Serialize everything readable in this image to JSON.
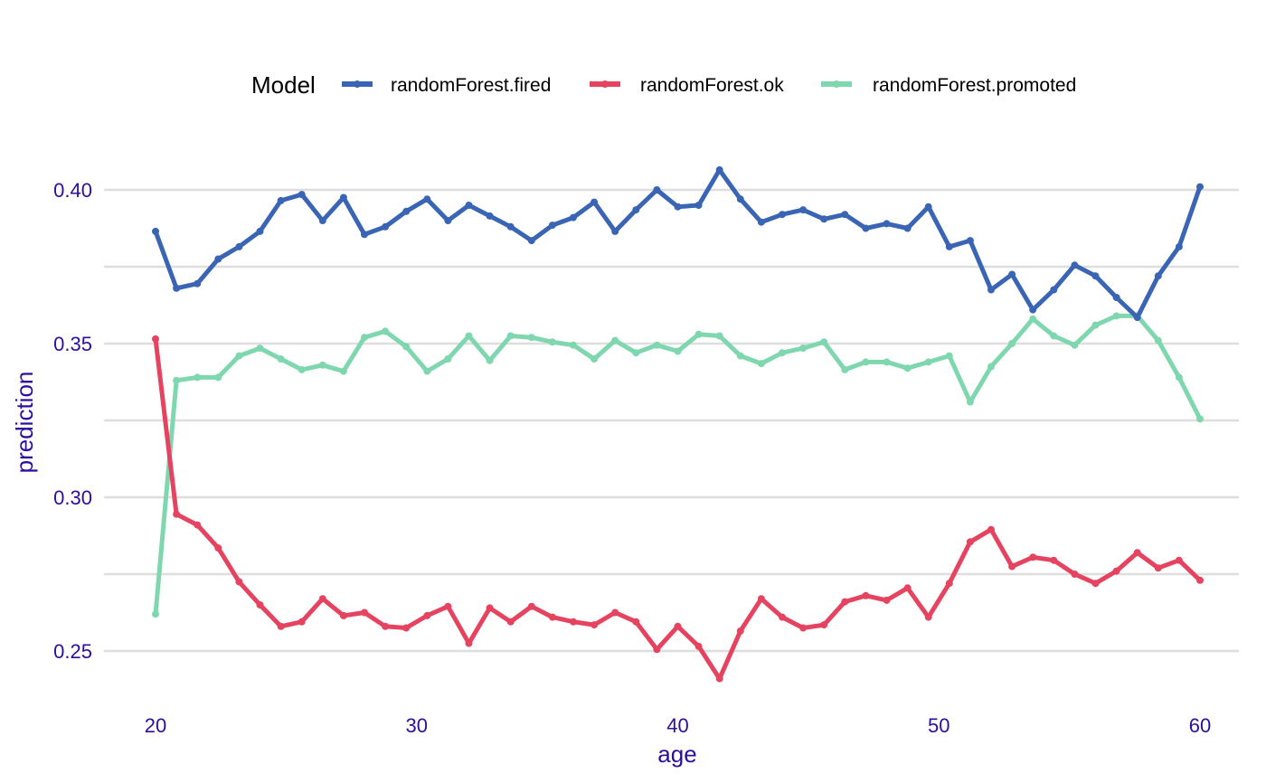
{
  "chart_data": {
    "type": "line",
    "title": "",
    "xlabel": "age",
    "ylabel": "prediction",
    "xlim": [
      20,
      60
    ],
    "ylim": [
      0.24,
      0.41
    ],
    "xticks": [
      "20",
      "30",
      "40",
      "50",
      "60"
    ],
    "yticks": [
      "0.25",
      "0.30",
      "0.35",
      "0.40"
    ],
    "grid": true,
    "legend": {
      "title": "Model",
      "position": "top"
    },
    "x": [
      20.0,
      20.8,
      21.6,
      22.4,
      23.2,
      24.0,
      24.8,
      25.6,
      26.4,
      27.2,
      28.0,
      28.8,
      29.6,
      30.4,
      31.2,
      32.0,
      32.8,
      33.6,
      34.4,
      35.2,
      36.0,
      36.8,
      37.6,
      38.4,
      39.2,
      40.0,
      40.8,
      41.6,
      42.4,
      43.2,
      44.0,
      44.8,
      45.6,
      46.4,
      47.2,
      48.0,
      48.8,
      49.6,
      50.4,
      51.2,
      52.0,
      52.8,
      53.6,
      54.4,
      55.2,
      56.0,
      56.8,
      57.6,
      58.4,
      59.2,
      60.0
    ],
    "series": [
      {
        "name": "randomForest.fired",
        "color": "#3a65b5",
        "values": [
          0.3865,
          0.368,
          0.3695,
          0.3775,
          0.3815,
          0.3865,
          0.3965,
          0.3985,
          0.39,
          0.3975,
          0.3855,
          0.388,
          0.393,
          0.397,
          0.39,
          0.395,
          0.3915,
          0.388,
          0.3835,
          0.3885,
          0.391,
          0.396,
          0.3865,
          0.3935,
          0.4,
          0.3945,
          0.395,
          0.4065,
          0.397,
          0.3895,
          0.392,
          0.3935,
          0.3905,
          0.392,
          0.3875,
          0.389,
          0.3875,
          0.3945,
          0.3815,
          0.3835,
          0.3675,
          0.3725,
          0.361,
          0.3675,
          0.3755,
          0.372,
          0.365,
          0.3585,
          0.372,
          0.3815,
          0.401
        ]
      },
      {
        "name": "randomForest.ok",
        "color": "#e5435f",
        "values": [
          0.3515,
          0.2945,
          0.291,
          0.2835,
          0.2725,
          0.265,
          0.258,
          0.2595,
          0.267,
          0.2615,
          0.2625,
          0.258,
          0.2575,
          0.2615,
          0.2645,
          0.2525,
          0.264,
          0.2595,
          0.2645,
          0.261,
          0.2595,
          0.2585,
          0.2625,
          0.2595,
          0.2505,
          0.258,
          0.2515,
          0.241,
          0.2565,
          0.267,
          0.261,
          0.2575,
          0.2585,
          0.266,
          0.268,
          0.2665,
          0.2705,
          0.261,
          0.272,
          0.2855,
          0.2895,
          0.2775,
          0.2805,
          0.2795,
          0.275,
          0.272,
          0.276,
          0.282,
          0.277,
          0.2795,
          0.273
        ]
      },
      {
        "name": "randomForest.promoted",
        "color": "#7fd7af",
        "values": [
          0.262,
          0.338,
          0.339,
          0.339,
          0.346,
          0.3485,
          0.345,
          0.3415,
          0.343,
          0.341,
          0.352,
          0.354,
          0.349,
          0.341,
          0.345,
          0.3525,
          0.3445,
          0.3525,
          0.352,
          0.3505,
          0.3495,
          0.345,
          0.351,
          0.347,
          0.3495,
          0.3475,
          0.353,
          0.3525,
          0.346,
          0.3435,
          0.347,
          0.3485,
          0.3505,
          0.3415,
          0.344,
          0.344,
          0.342,
          0.344,
          0.346,
          0.331,
          0.3425,
          0.35,
          0.358,
          0.3525,
          0.3495,
          0.356,
          0.359,
          0.359,
          0.351,
          0.339,
          0.3255
        ]
      }
    ]
  }
}
